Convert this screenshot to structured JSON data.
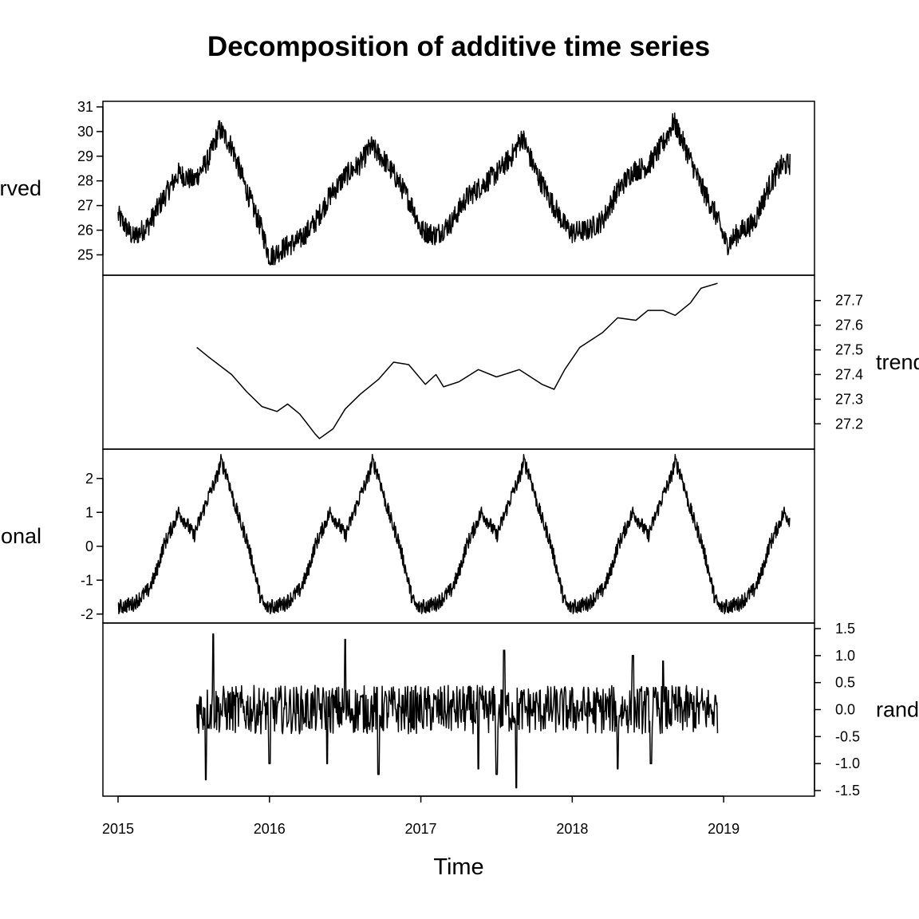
{
  "chart_data": {
    "type": "line",
    "title": "Decomposition of additive time series",
    "xlabel": "Time",
    "x_ticks": [
      "2015",
      "2016",
      "2017",
      "2018",
      "2019"
    ],
    "x_range": [
      2014.9,
      2019.6
    ],
    "panels": [
      {
        "name": "observed",
        "ylabel": "observed",
        "axis_side": "left",
        "ylim": [
          24.4,
          31.0
        ],
        "y_ticks": [
          "25",
          "26",
          "27",
          "28",
          "29",
          "30",
          "31"
        ],
        "start": 2015.0,
        "end": 2019.44,
        "points": [
          [
            2015.0,
            26.6
          ],
          [
            2015.1,
            25.7
          ],
          [
            2015.2,
            26.2
          ],
          [
            2015.3,
            27.3
          ],
          [
            2015.4,
            28.3
          ],
          [
            2015.5,
            28.0
          ],
          [
            2015.6,
            28.9
          ],
          [
            2015.67,
            30.1
          ],
          [
            2015.75,
            29.4
          ],
          [
            2015.85,
            27.6
          ],
          [
            2015.95,
            26.0
          ],
          [
            2016.0,
            24.9
          ],
          [
            2016.1,
            25.3
          ],
          [
            2016.2,
            25.6
          ],
          [
            2016.3,
            26.3
          ],
          [
            2016.4,
            27.4
          ],
          [
            2016.5,
            28.2
          ],
          [
            2016.6,
            28.7
          ],
          [
            2016.67,
            29.4
          ],
          [
            2016.75,
            28.9
          ],
          [
            2016.85,
            28.0
          ],
          [
            2016.95,
            26.9
          ],
          [
            2017.0,
            26.0
          ],
          [
            2017.1,
            25.8
          ],
          [
            2017.2,
            26.3
          ],
          [
            2017.3,
            27.3
          ],
          [
            2017.4,
            27.8
          ],
          [
            2017.5,
            28.3
          ],
          [
            2017.6,
            29.0
          ],
          [
            2017.67,
            29.8
          ],
          [
            2017.75,
            28.5
          ],
          [
            2017.85,
            27.3
          ],
          [
            2017.95,
            26.2
          ],
          [
            2018.0,
            25.9
          ],
          [
            2018.1,
            26.0
          ],
          [
            2018.2,
            26.4
          ],
          [
            2018.3,
            27.6
          ],
          [
            2018.4,
            28.4
          ],
          [
            2018.5,
            28.6
          ],
          [
            2018.6,
            29.5
          ],
          [
            2018.67,
            30.4
          ],
          [
            2018.75,
            29.3
          ],
          [
            2018.85,
            27.8
          ],
          [
            2018.95,
            26.6
          ],
          [
            2019.02,
            25.4
          ],
          [
            2019.1,
            25.9
          ],
          [
            2019.2,
            26.3
          ],
          [
            2019.3,
            27.8
          ],
          [
            2019.38,
            28.6
          ],
          [
            2019.44,
            28.7
          ]
        ]
      },
      {
        "name": "trend",
        "ylabel": "trend",
        "axis_side": "right",
        "ylim": [
          27.12,
          27.78
        ],
        "y_ticks": [
          "27.2",
          "27.3",
          "27.4",
          "27.5",
          "27.6",
          "27.7"
        ],
        "start": 2015.52,
        "end": 2018.96,
        "points": [
          [
            2015.52,
            27.51
          ],
          [
            2015.6,
            27.47
          ],
          [
            2015.75,
            27.4
          ],
          [
            2015.85,
            27.33
          ],
          [
            2015.95,
            27.27
          ],
          [
            2016.05,
            27.25
          ],
          [
            2016.12,
            27.28
          ],
          [
            2016.2,
            27.24
          ],
          [
            2016.3,
            27.16
          ],
          [
            2016.33,
            27.14
          ],
          [
            2016.42,
            27.18
          ],
          [
            2016.5,
            27.26
          ],
          [
            2016.6,
            27.32
          ],
          [
            2016.72,
            27.38
          ],
          [
            2016.82,
            27.45
          ],
          [
            2016.92,
            27.44
          ],
          [
            2017.03,
            27.36
          ],
          [
            2017.1,
            27.4
          ],
          [
            2017.15,
            27.35
          ],
          [
            2017.25,
            27.37
          ],
          [
            2017.38,
            27.42
          ],
          [
            2017.5,
            27.39
          ],
          [
            2017.65,
            27.42
          ],
          [
            2017.8,
            27.36
          ],
          [
            2017.88,
            27.34
          ],
          [
            2017.95,
            27.42
          ],
          [
            2018.05,
            27.51
          ],
          [
            2018.2,
            27.57
          ],
          [
            2018.3,
            27.63
          ],
          [
            2018.42,
            27.62
          ],
          [
            2018.5,
            27.66
          ],
          [
            2018.6,
            27.66
          ],
          [
            2018.68,
            27.64
          ],
          [
            2018.78,
            27.69
          ],
          [
            2018.85,
            27.75
          ],
          [
            2018.96,
            27.77
          ]
        ]
      },
      {
        "name": "seasonal",
        "ylabel": "seasonal",
        "axis_side": "left",
        "ylim": [
          -2.1,
          2.7
        ],
        "y_ticks": [
          "-2",
          "-1",
          "0",
          "1",
          "2"
        ],
        "start": 2015.0,
        "end": 2019.44,
        "period": 1.0,
        "cycle": [
          [
            0.0,
            -1.8
          ],
          [
            0.05,
            -1.75
          ],
          [
            0.1,
            -1.7
          ],
          [
            0.15,
            -1.5
          ],
          [
            0.2,
            -1.3
          ],
          [
            0.25,
            -0.8
          ],
          [
            0.3,
            0.0
          ],
          [
            0.35,
            0.5
          ],
          [
            0.4,
            1.0
          ],
          [
            0.45,
            0.7
          ],
          [
            0.5,
            0.3
          ],
          [
            0.55,
            0.9
          ],
          [
            0.6,
            1.5
          ],
          [
            0.65,
            2.0
          ],
          [
            0.68,
            2.5
          ],
          [
            0.72,
            2.1
          ],
          [
            0.76,
            1.4
          ],
          [
            0.8,
            0.8
          ],
          [
            0.85,
            0.2
          ],
          [
            0.9,
            -0.7
          ],
          [
            0.94,
            -1.5
          ],
          [
            0.97,
            -1.8
          ],
          [
            1.0,
            -1.8
          ]
        ]
      },
      {
        "name": "random",
        "ylabel": "random",
        "axis_side": "right",
        "ylim": [
          -1.5,
          1.5
        ],
        "y_ticks": [
          "-1.5",
          "-1.0",
          "-0.5",
          "0.0",
          "0.5",
          "1.0",
          "1.5"
        ],
        "start": 2015.52,
        "end": 2018.96,
        "spikes": [
          [
            2015.58,
            -1.3
          ],
          [
            2015.63,
            1.4
          ],
          [
            2016.0,
            -1.0
          ],
          [
            2016.38,
            -1.0
          ],
          [
            2016.5,
            1.3
          ],
          [
            2016.72,
            -1.2
          ],
          [
            2017.38,
            -1.1
          ],
          [
            2017.5,
            -1.2
          ],
          [
            2017.55,
            1.1
          ],
          [
            2017.63,
            -1.45
          ],
          [
            2018.3,
            -1.1
          ],
          [
            2018.4,
            1.0
          ],
          [
            2018.52,
            -1.0
          ],
          [
            2018.6,
            0.9
          ]
        ],
        "amplitude": 0.45
      }
    ]
  }
}
